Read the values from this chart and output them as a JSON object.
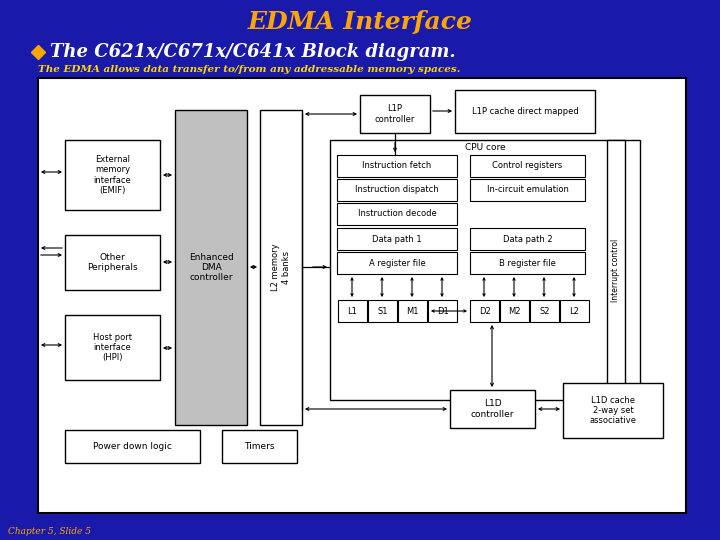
{
  "bg_color": "#1a1aaa",
  "title": "EDMA Interface",
  "title_color": "#FFA500",
  "bullet_color": "#FFA500",
  "bullet_text": "The C621x/C671x/C641x Block diagram.",
  "bullet_text_color": "#FFFFFF",
  "subtitle": "The EDMA allows data transfer to/from any addressable memory spaces.",
  "subtitle_color": "#FFD700",
  "footer": "Chapter 5, Slide 5",
  "footer_color": "#FFA500",
  "diagram_bg": "#FFFFFF",
  "diagram_border": "#000000"
}
